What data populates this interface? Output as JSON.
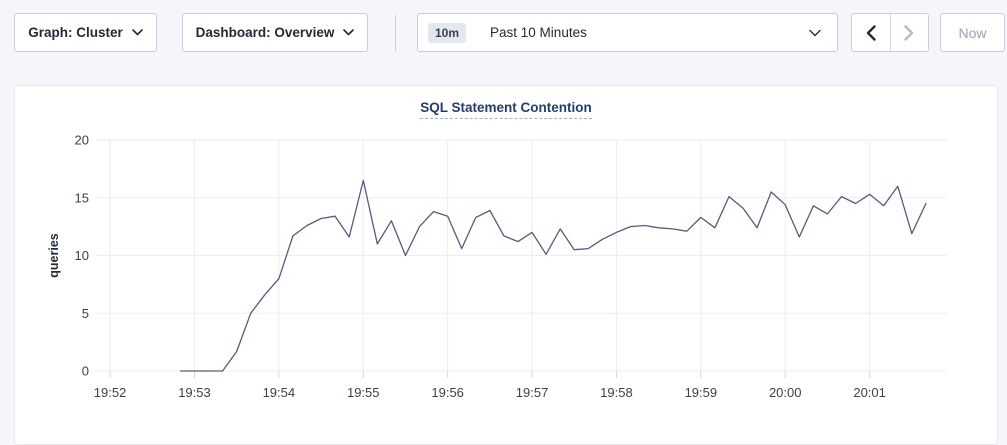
{
  "topbar": {
    "graph_selector": {
      "label": "Graph: Cluster"
    },
    "dashboard_selector": {
      "label": "Dashboard: Overview"
    },
    "time_selector": {
      "badge": "10m",
      "label": "Past 10 Minutes"
    },
    "history": {
      "prev_enabled": true,
      "next_enabled": false
    },
    "now_label": "Now"
  },
  "chart_data": {
    "type": "line",
    "title": "SQL Statement Contention",
    "ylabel": "queries",
    "ylim": [
      0,
      20
    ],
    "yticks": [
      0,
      5,
      10,
      15,
      20
    ],
    "xticks": [
      "19:52",
      "19:53",
      "19:54",
      "19:55",
      "19:56",
      "19:57",
      "19:58",
      "19:59",
      "20:00",
      "20:01"
    ],
    "xtick_offsets_sec": [
      10,
      70,
      130,
      190,
      250,
      310,
      370,
      430,
      490,
      550
    ],
    "x_domain_sec": [
      0,
      605
    ],
    "grid": true,
    "legend": "none",
    "series": [
      {
        "name": "queries",
        "start_time": "19:52:50",
        "end_time": "20:01:40",
        "interval_sec": 10,
        "start_offset_sec": 60,
        "values": [
          0,
          0,
          0,
          0,
          1.7,
          5,
          6.6,
          8,
          11.7,
          12.6,
          13.2,
          13.4,
          11.6,
          16.5,
          11,
          13,
          10,
          12.5,
          13.8,
          13.4,
          10.6,
          13.3,
          13.9,
          11.7,
          11.2,
          12,
          10.1,
          12.3,
          10.5,
          10.6,
          11.4,
          12,
          12.5,
          12.6,
          12.4,
          12.3,
          12.1,
          13.3,
          12.4,
          15.1,
          14.1,
          12.4,
          15.5,
          14.4,
          11.6,
          14.3,
          13.6,
          15.1,
          14.5,
          15.3,
          14.3,
          16,
          11.9,
          14.5
        ]
      }
    ]
  },
  "colors": {
    "page_background": "#f5f6fa",
    "card_background": "#ffffff",
    "card_border": "#e7e9ef",
    "button_border": "#c9cdd8",
    "button_text": "#242a35",
    "badge_background": "#e4e7f0",
    "disabled_text": "#9aa2b1",
    "disabled_arrow": "#b3bac6",
    "title_text": "#253e68",
    "line": "#545d78",
    "gridline": "#ecedf1",
    "axis_text": "#3b4248",
    "tick_mark": "#d3d6dd"
  }
}
